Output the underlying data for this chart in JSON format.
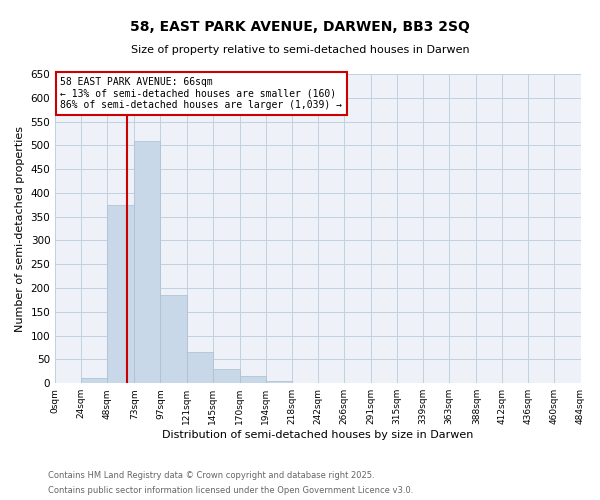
{
  "title": "58, EAST PARK AVENUE, DARWEN, BB3 2SQ",
  "subtitle": "Size of property relative to semi-detached houses in Darwen",
  "xlabel": "Distribution of semi-detached houses by size in Darwen",
  "ylabel": "Number of semi-detached properties",
  "bar_edges": [
    0,
    24,
    48,
    73,
    97,
    121,
    145,
    170,
    194,
    218,
    242,
    266,
    291,
    315,
    339,
    363,
    388,
    412,
    436,
    460,
    484
  ],
  "bar_heights": [
    0,
    10,
    375,
    510,
    185,
    65,
    30,
    15,
    5,
    0,
    0,
    0,
    0,
    0,
    0,
    0,
    0,
    0,
    0,
    0
  ],
  "bar_color": "#c8d8e8",
  "bar_edgecolor": "#a8c0d0",
  "ylim": [
    0,
    650
  ],
  "yticks": [
    0,
    50,
    100,
    150,
    200,
    250,
    300,
    350,
    400,
    450,
    500,
    550,
    600,
    650
  ],
  "xtick_labels": [
    "0sqm",
    "24sqm",
    "48sqm",
    "73sqm",
    "97sqm",
    "121sqm",
    "145sqm",
    "170sqm",
    "194sqm",
    "218sqm",
    "242sqm",
    "266sqm",
    "291sqm",
    "315sqm",
    "339sqm",
    "363sqm",
    "388sqm",
    "412sqm",
    "436sqm",
    "460sqm",
    "484sqm"
  ],
  "property_size": 66,
  "vline_color": "#cc0000",
  "annotation_title": "58 EAST PARK AVENUE: 66sqm",
  "annotation_line1": "← 13% of semi-detached houses are smaller (160)",
  "annotation_line2": "86% of semi-detached houses are larger (1,039) →",
  "annotation_box_color": "#cc0000",
  "grid_color": "#c0d0e0",
  "background_color": "#eef2f8",
  "footer_line1": "Contains HM Land Registry data © Crown copyright and database right 2025.",
  "footer_line2": "Contains public sector information licensed under the Open Government Licence v3.0."
}
